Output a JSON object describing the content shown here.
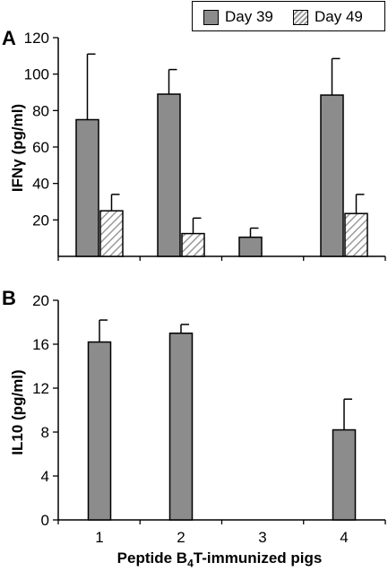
{
  "legend": {
    "day39": "Day 39",
    "day49": "Day 49"
  },
  "chart_data": [
    {
      "panel": "A",
      "type": "bar",
      "ylabel": "IFNγ (pg/ml)",
      "ylim": [
        0,
        120
      ],
      "yticks": [
        20,
        40,
        60,
        80,
        100,
        120
      ],
      "categories": [
        "1",
        "2",
        "3",
        "4"
      ],
      "show_tick_labels": false,
      "series": [
        {
          "name": "Day 39",
          "fill": "solid",
          "values": [
            75,
            89,
            10.5,
            88.5
          ],
          "errors": [
            36,
            13.5,
            5,
            20
          ]
        },
        {
          "name": "Day 49",
          "fill": "hatch",
          "values": [
            25,
            12.5,
            0,
            23.5
          ],
          "errors": [
            9,
            8.5,
            0,
            10.5
          ]
        }
      ]
    },
    {
      "panel": "B",
      "type": "bar",
      "ylabel": "IL10 (pg/ml)",
      "ylim": [
        0,
        20
      ],
      "yticks": [
        0,
        4,
        8,
        12,
        16,
        20
      ],
      "categories": [
        "1",
        "2",
        "3",
        "4"
      ],
      "show_tick_labels": true,
      "xlabel_main": "Peptide B",
      "xlabel_sub": "4",
      "xlabel_rest": "T-immunized pigs",
      "series": [
        {
          "name": "Day 39",
          "fill": "solid",
          "values": [
            16.2,
            17,
            0,
            8.2
          ],
          "errors": [
            2,
            0.8,
            0,
            2.8
          ]
        }
      ]
    }
  ],
  "colors": {
    "solid_bar": "#8c8c8c",
    "hatch_stroke": "#9a9a9a",
    "axis": "#000000"
  }
}
